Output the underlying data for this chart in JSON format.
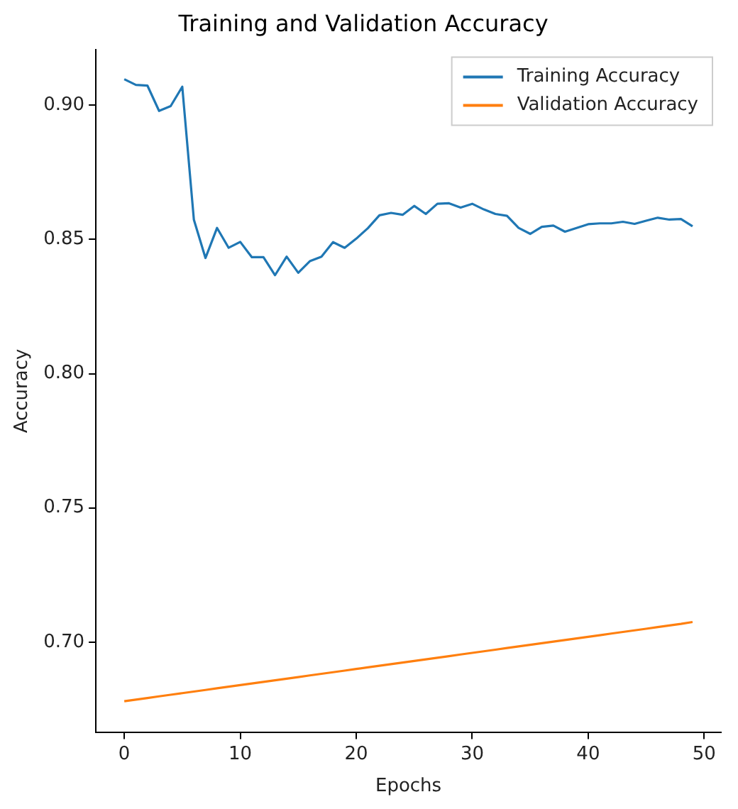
{
  "chart_data": {
    "type": "line",
    "title": "Training and Validation Accuracy",
    "xlabel": "Epochs",
    "ylabel": "Accuracy",
    "xlim": [
      -2.45,
      51.45
    ],
    "xticks": [
      0,
      10,
      20,
      30,
      40,
      50
    ],
    "ylim": [
      0.6665,
      0.9206
    ],
    "yticks": [
      {
        "value": 0.7,
        "label": "0.70"
      },
      {
        "value": 0.75,
        "label": "0.75"
      },
      {
        "value": 0.8,
        "label": "0.80"
      },
      {
        "value": 0.85,
        "label": "0.85"
      },
      {
        "value": 0.9,
        "label": "0.90"
      }
    ],
    "legend": "top right",
    "grid": false,
    "marker": "none",
    "line_style": "solid",
    "x": [
      0,
      1,
      2,
      3,
      4,
      5,
      6,
      7,
      8,
      9,
      10,
      11,
      12,
      13,
      14,
      15,
      16,
      17,
      18,
      19,
      20,
      21,
      22,
      23,
      24,
      25,
      26,
      27,
      28,
      29,
      30,
      31,
      32,
      33,
      34,
      35,
      36,
      37,
      38,
      39,
      40,
      41,
      42,
      43,
      44,
      45,
      46,
      47,
      48,
      49
    ],
    "series": [
      {
        "name": "Training Accuracy",
        "color": "#1f77b4",
        "values": [
          0.9097,
          0.9076,
          0.9073,
          0.8979,
          0.8997,
          0.9069,
          0.8574,
          0.8431,
          0.8543,
          0.8469,
          0.8491,
          0.8434,
          0.8434,
          0.8367,
          0.8436,
          0.8376,
          0.8419,
          0.8436,
          0.849,
          0.8469,
          0.8503,
          0.8542,
          0.859,
          0.8599,
          0.8592,
          0.8625,
          0.8595,
          0.8633,
          0.8635,
          0.8619,
          0.8633,
          0.8612,
          0.8595,
          0.8588,
          0.8543,
          0.8521,
          0.8547,
          0.8552,
          0.8529,
          0.8543,
          0.8557,
          0.856,
          0.856,
          0.8566,
          0.8558,
          0.857,
          0.8581,
          0.8574,
          0.8576,
          0.8549
        ]
      },
      {
        "name": "Validation Accuracy",
        "color": "#ff7f0e",
        "values": [
          0.678,
          0.6786,
          0.6792,
          0.6798,
          0.6804,
          0.681,
          0.6816,
          0.6822,
          0.6828,
          0.6834,
          0.684,
          0.6846,
          0.6852,
          0.6858,
          0.6864,
          0.687,
          0.6876,
          0.6882,
          0.6888,
          0.6894,
          0.69,
          0.6906,
          0.6912,
          0.6918,
          0.6924,
          0.693,
          0.6936,
          0.6942,
          0.6948,
          0.6954,
          0.696,
          0.6966,
          0.6972,
          0.6978,
          0.6984,
          0.699,
          0.6996,
          0.7002,
          0.7008,
          0.7014,
          0.702,
          0.7026,
          0.7032,
          0.7038,
          0.7044,
          0.705,
          0.7056,
          0.7062,
          0.7068,
          0.7075
        ]
      }
    ]
  }
}
